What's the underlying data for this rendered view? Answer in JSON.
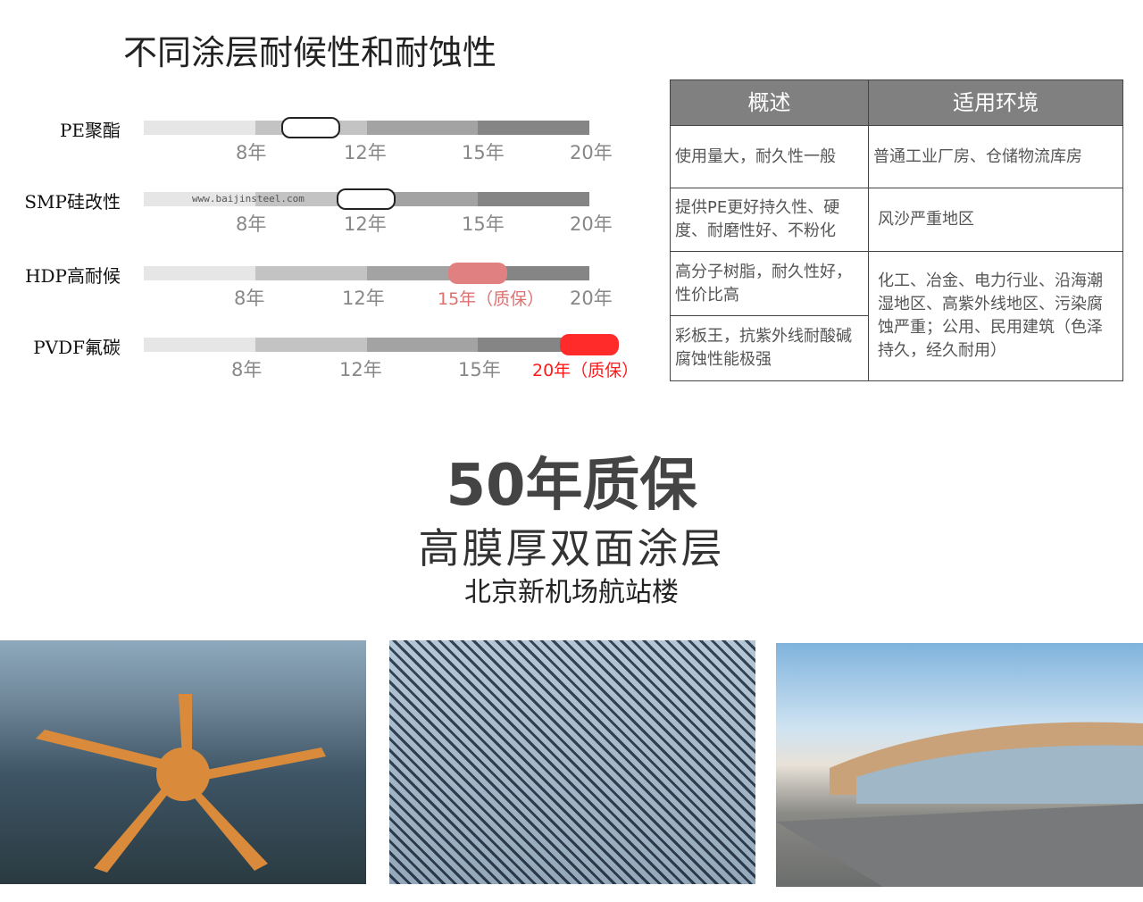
{
  "title": "不同涂层耐候性和耐蚀性",
  "watermark": "www.baijinsteel.com",
  "coatings": [
    {
      "name": "PE聚酯",
      "ticks": [
        "8年",
        "12年",
        "15年",
        "20年"
      ],
      "marker_years": 10,
      "marker_color": "#ffffff",
      "highlight_tick": null
    },
    {
      "name": "SMP硅改性",
      "ticks": [
        "8年",
        "12年",
        "15年",
        "20年"
      ],
      "marker_years": 12,
      "marker_color": "#ffffff",
      "highlight_tick": null
    },
    {
      "name": "HDP高耐候",
      "ticks": [
        "8年",
        "12年",
        "15年（质保）",
        "20年"
      ],
      "marker_years": 15,
      "marker_color": "#e08080",
      "highlight_tick": 2,
      "highlight_color": "#e07070"
    },
    {
      "name": "PVDF氟碳",
      "ticks": [
        "8年",
        "12年",
        "15年",
        "20年（质保）"
      ],
      "marker_years": 20,
      "marker_color": "#ff2a2a",
      "highlight_tick": 3,
      "highlight_color": "#ff1a1a"
    }
  ],
  "table": {
    "headers": [
      "概述",
      "适用环境"
    ],
    "rows": [
      {
        "desc": "使用量大，耐久性一般",
        "env": "普通工业厂房、仓储物流库房"
      },
      {
        "desc": "提供PE更好持久性、硬度、耐磨性好、不粉化",
        "env": "风沙严重地区"
      },
      {
        "desc": "高分子树脂，耐久性好，性价比高",
        "env": "化工、冶金、电力行业、沿海潮湿地区、高紫外线地区、污染腐蚀严重；公用、民用建筑（色泽持久，经久耐用）"
      },
      {
        "desc": "彩板王，抗紫外线耐酸碱腐蚀性能极强"
      }
    ]
  },
  "headline": "50年质保",
  "subheadline": "高膜厚双面涂层",
  "caption": "北京新机场航站楼"
}
